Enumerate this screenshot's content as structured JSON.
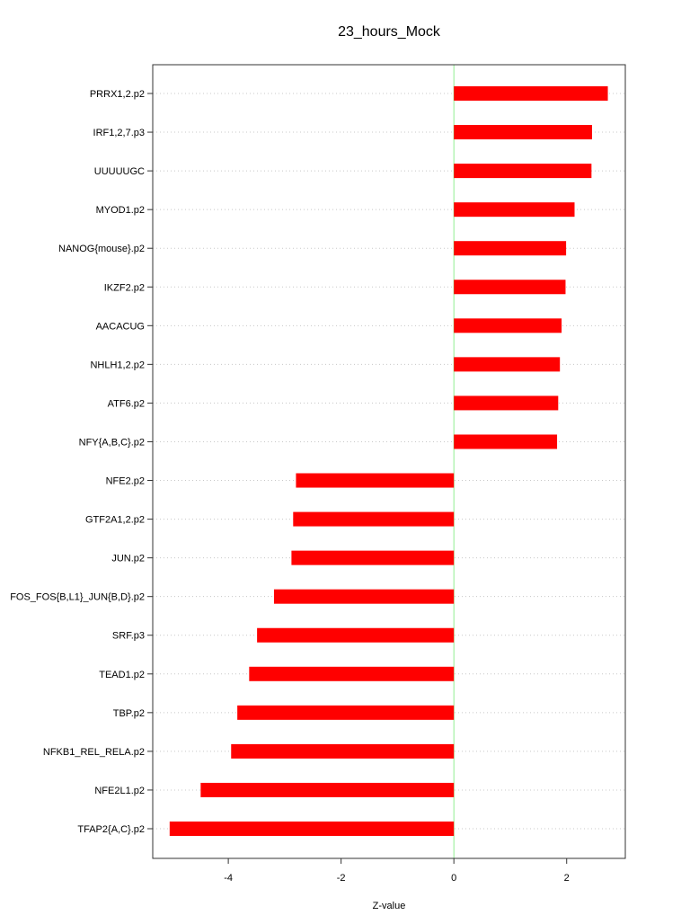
{
  "chart_data": {
    "type": "bar",
    "orientation": "horizontal",
    "title": "23_hours_Mock",
    "xlabel": "Z-value",
    "ylabel": "",
    "xlim": [
      -5.34,
      3.04
    ],
    "xticks": [
      -4,
      -2,
      0,
      2
    ],
    "grid": true,
    "bar_color": "#ff0000",
    "zero_line_color": "#90ee90",
    "categories": [
      "PRRX1,2.p2",
      "IRF1,2,7.p3",
      "UUUUUGC",
      "MYOD1.p2",
      "NANOG{mouse}.p2",
      "IKZF2.p2",
      "AACACUG",
      "NHLH1,2.p2",
      "ATF6.p2",
      "NFY{A,B,C}.p2",
      "NFE2.p2",
      "GTF2A1,2.p2",
      "JUN.p2",
      "FOS_FOS{B,L1}_JUN{B,D}.p2",
      "SRF.p3",
      "TEAD1.p2",
      "TBP.p2",
      "NFKB1_REL_RELA.p2",
      "NFE2L1.p2",
      "TFAP2{A,C}.p2"
    ],
    "values": [
      2.73,
      2.45,
      2.44,
      2.14,
      1.99,
      1.98,
      1.91,
      1.88,
      1.85,
      1.83,
      -2.8,
      -2.85,
      -2.88,
      -3.19,
      -3.49,
      -3.63,
      -3.84,
      -3.95,
      -4.49,
      -5.04
    ]
  }
}
